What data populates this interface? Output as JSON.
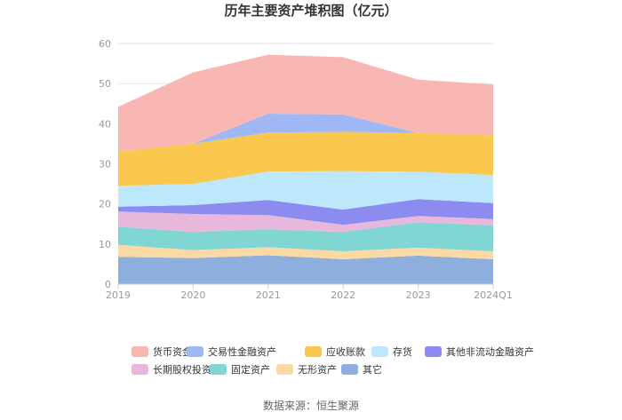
{
  "chart_data": {
    "type": "area",
    "stacked": true,
    "title": "历年主要资产堆积图（亿元）",
    "categories": [
      "2019",
      "2020",
      "2021",
      "2022",
      "2023",
      "2024Q1"
    ],
    "ylim": [
      0,
      60
    ],
    "yticks": [
      0,
      10,
      20,
      30,
      40,
      50,
      60
    ],
    "grid": true,
    "legend_position": "bottom",
    "series": [
      {
        "name": "其它",
        "color": "#8eaedd",
        "values": [
          6.8,
          6.5,
          7.2,
          6.2,
          7.1,
          6.2
        ]
      },
      {
        "name": "无形资产",
        "color": "#fcd9a2",
        "values": [
          3.0,
          2.0,
          2.0,
          2.0,
          2.0,
          2.0
        ]
      },
      {
        "name": "固定资产",
        "color": "#7fd6d2",
        "values": [
          4.5,
          4.5,
          4.5,
          4.8,
          6.3,
          6.5
        ]
      },
      {
        "name": "长期股权投资",
        "color": "#e8b8dc",
        "values": [
          3.8,
          4.5,
          3.5,
          1.8,
          1.6,
          1.5
        ]
      },
      {
        "name": "其他非流动金融资产",
        "color": "#8c8cf0",
        "values": [
          1.2,
          2.2,
          3.8,
          3.8,
          4.2,
          4.0
        ]
      },
      {
        "name": "存货",
        "color": "#bde8fb",
        "values": [
          5.2,
          5.3,
          7.1,
          9.6,
          6.8,
          7.0
        ]
      },
      {
        "name": "应收账款",
        "color": "#fbc84f",
        "values": [
          8.6,
          10.0,
          9.7,
          9.8,
          9.7,
          9.9
        ]
      },
      {
        "name": "交易性金融资产",
        "color": "#9fb8f5",
        "values": [
          0,
          0,
          4.7,
          4.3,
          0,
          0
        ]
      },
      {
        "name": "货币资金",
        "color": "#f9b7b3",
        "values": [
          11.1,
          17.8,
          14.7,
          14.3,
          13.3,
          12.7
        ]
      }
    ],
    "legend_order": [
      "货币资金",
      "交易性金融资产",
      "应收账款",
      "存货",
      "其他非流动金融资产",
      "长期股权投资",
      "固定资产",
      "无形资产",
      "其它"
    ]
  },
  "source_text": "数据来源：恒生聚源"
}
